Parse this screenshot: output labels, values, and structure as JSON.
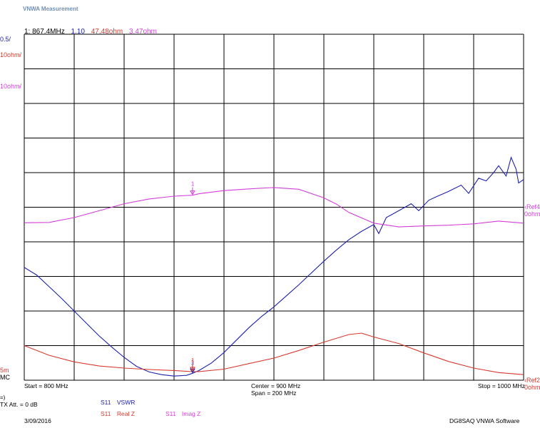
{
  "window": {
    "title": "VNWA Measurement"
  },
  "marker_readout": {
    "label": "1:",
    "freq": "867.4MHz",
    "vswr": "1.10",
    "real": "47.48ohm",
    "imag": "3.47ohm"
  },
  "scale_labels": {
    "vswr_div": "0.5/",
    "real_div": "10ohm/",
    "imag_div": "10ohm/",
    "vswr_ref_value": "5m",
    "vswr_ref_mode": "MC",
    "imag_ref": "Ref4",
    "imag_ref_unit": "0ohm",
    "real_ref": "Ref2",
    "real_ref_unit": "0ohm"
  },
  "freq_axis": {
    "start": "Start = 800 MHz",
    "center": "Center = 900 MHz",
    "span": "Span = 200 MHz",
    "stop": "Stop = 1000 MHz"
  },
  "legend": {
    "arrow": "=)",
    "tx_att": "TX Att. = 0 dB",
    "vswr": {
      "param": "S11",
      "name": "VSWR"
    },
    "real": {
      "param": "S11",
      "name": "Real Z"
    },
    "imag": {
      "param": "S11",
      "name": "Imag Z"
    }
  },
  "footer": {
    "date": "3/09/2016",
    "software": "DG8SAQ VNWA Software"
  },
  "colors": {
    "vswr": "#1e22a8",
    "real": "#d63a2f",
    "imag": "#d23fd8",
    "grid": "#000000"
  },
  "chart_data": {
    "type": "line",
    "x_unit": "MHz",
    "xlim": [
      800,
      1000
    ],
    "marker": {
      "label": "1",
      "x": 867.4
    },
    "series": [
      {
        "key": "vswr",
        "name": "VSWR",
        "unit_per_div": 0.5,
        "points": [
          [
            800,
            2.63
          ],
          [
            805,
            2.52
          ],
          [
            810,
            2.35
          ],
          [
            815,
            2.18
          ],
          [
            820,
            2.0
          ],
          [
            825,
            1.82
          ],
          [
            830,
            1.64
          ],
          [
            835,
            1.48
          ],
          [
            840,
            1.33
          ],
          [
            845,
            1.2
          ],
          [
            850,
            1.12
          ],
          [
            855,
            1.08
          ],
          [
            860,
            1.06
          ],
          [
            865,
            1.07
          ],
          [
            867.4,
            1.1
          ],
          [
            870,
            1.14
          ],
          [
            875,
            1.25
          ],
          [
            880,
            1.4
          ],
          [
            885,
            1.58
          ],
          [
            890,
            1.76
          ],
          [
            895,
            1.92
          ],
          [
            900,
            2.06
          ],
          [
            905,
            2.22
          ],
          [
            910,
            2.38
          ],
          [
            915,
            2.55
          ],
          [
            920,
            2.72
          ],
          [
            925,
            2.88
          ],
          [
            930,
            3.03
          ],
          [
            935,
            3.15
          ],
          [
            940,
            3.25
          ],
          [
            942,
            3.12
          ],
          [
            945,
            3.35
          ],
          [
            950,
            3.45
          ],
          [
            955,
            3.55
          ],
          [
            958,
            3.45
          ],
          [
            962,
            3.6
          ],
          [
            965,
            3.65
          ],
          [
            970,
            3.73
          ],
          [
            975,
            3.82
          ],
          [
            978,
            3.7
          ],
          [
            982,
            3.92
          ],
          [
            985,
            3.88
          ],
          [
            988,
            4.0
          ],
          [
            990,
            4.1
          ],
          [
            993,
            3.95
          ],
          [
            995,
            4.22
          ],
          [
            997,
            4.05
          ],
          [
            998,
            3.85
          ],
          [
            1000,
            3.9
          ]
        ]
      },
      {
        "key": "real",
        "name": "Real Z",
        "unit_per_div": 10,
        "points": [
          [
            800,
            55.0
          ],
          [
            810,
            52.2
          ],
          [
            820,
            50.3
          ],
          [
            830,
            49.1
          ],
          [
            840,
            48.5
          ],
          [
            850,
            48.1
          ],
          [
            860,
            47.8
          ],
          [
            867.4,
            47.48
          ],
          [
            870,
            47.5
          ],
          [
            880,
            48.2
          ],
          [
            890,
            49.8
          ],
          [
            900,
            51.4
          ],
          [
            910,
            53.6
          ],
          [
            920,
            56.0
          ],
          [
            930,
            58.2
          ],
          [
            935,
            58.6
          ],
          [
            940,
            57.5
          ],
          [
            950,
            55.6
          ],
          [
            960,
            52.9
          ],
          [
            970,
            50.4
          ],
          [
            980,
            48.5
          ],
          [
            990,
            47.2
          ],
          [
            1000,
            46.6
          ]
        ]
      },
      {
        "key": "imag",
        "name": "Imag Z",
        "unit_per_div": 10,
        "points": [
          [
            800,
            -4.5
          ],
          [
            810,
            -4.4
          ],
          [
            820,
            -3.0
          ],
          [
            830,
            -1.0
          ],
          [
            840,
            1.0
          ],
          [
            850,
            2.4
          ],
          [
            860,
            3.2
          ],
          [
            867.4,
            3.47
          ],
          [
            870,
            3.9
          ],
          [
            880,
            4.8
          ],
          [
            890,
            5.3
          ],
          [
            900,
            5.7
          ],
          [
            910,
            5.2
          ],
          [
            920,
            2.7
          ],
          [
            925,
            0.9
          ],
          [
            930,
            -1.5
          ],
          [
            940,
            -4.6
          ],
          [
            950,
            -5.7
          ],
          [
            960,
            -5.4
          ],
          [
            970,
            -5.2
          ],
          [
            980,
            -4.8
          ],
          [
            990,
            -4.0
          ],
          [
            1000,
            -4.6
          ]
        ]
      }
    ]
  }
}
